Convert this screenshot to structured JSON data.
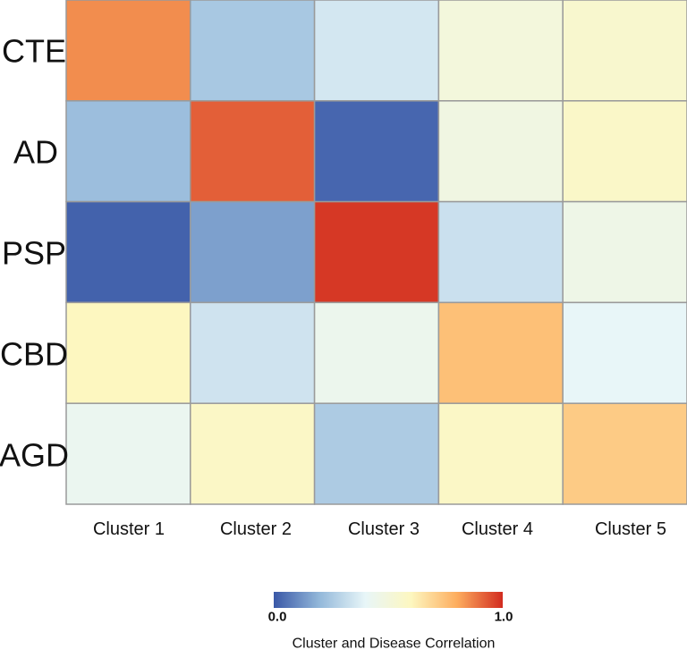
{
  "chart_data": {
    "type": "heatmap",
    "rows": [
      "CTE",
      "AD",
      "PSP",
      "CBD",
      "AGD"
    ],
    "columns": [
      "Cluster 1",
      "Cluster 2",
      "Cluster 3",
      "Cluster 4",
      "Cluster 5"
    ],
    "values": [
      [
        0.85,
        0.25,
        0.35,
        0.5,
        0.55
      ],
      [
        0.22,
        0.92,
        0.03,
        0.48,
        0.57
      ],
      [
        0.02,
        0.15,
        0.98,
        0.33,
        0.46
      ],
      [
        0.6,
        0.34,
        0.44,
        0.75,
        0.4
      ],
      [
        0.43,
        0.58,
        0.26,
        0.58,
        0.72
      ]
    ],
    "colorscale": {
      "name": "blue-yellow-red (RdYlBu reversed)",
      "min": 0.0,
      "max": 1.0,
      "min_label": "0.0",
      "max_label": "1.0",
      "title": "Cluster and Disease Correlation",
      "stops": [
        "#3a58a7",
        "#93b8da",
        "#e8f6f8",
        "#fdf7c0",
        "#fdad5e",
        "#d22b1f"
      ]
    },
    "cell_border_color": "#9a9a9a"
  }
}
